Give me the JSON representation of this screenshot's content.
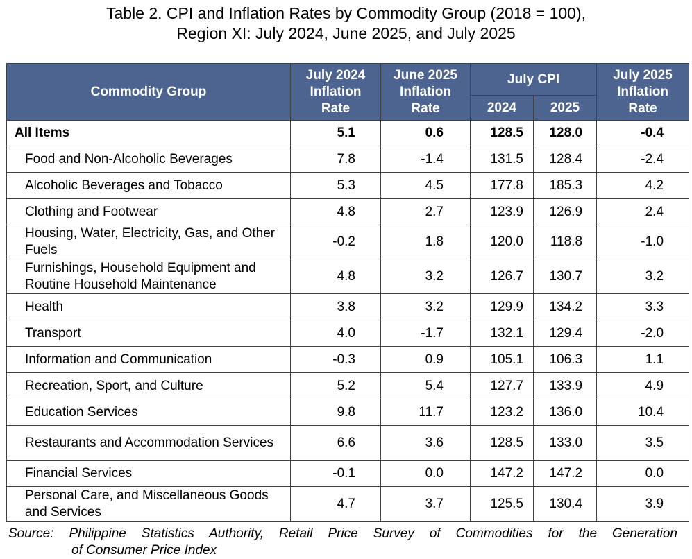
{
  "title": {
    "line1": "Table 2. CPI and Inflation Rates by Commodity Group (2018 = 100),",
    "line2": "Region XI: July 2024, June 2025, and July 2025"
  },
  "table": {
    "headers": {
      "commodity": "Commodity Group",
      "july2024_rate": [
        "July 2024",
        "Inflation",
        "Rate"
      ],
      "june2025_rate": [
        "June 2025",
        "Inflation",
        "Rate"
      ],
      "july_cpi": "July CPI",
      "cpi_2024": "2024",
      "cpi_2025": "2025",
      "july2025_rate": [
        "July 2025",
        "Inflation",
        "Rate"
      ]
    },
    "rows": [
      {
        "group": "All Items",
        "r2024": "5.1",
        "r_jun2025": "0.6",
        "cpi2024": "128.5",
        "cpi2025": "128.0",
        "r2025": "-0.4"
      },
      {
        "group": "Food and Non-Alcoholic Beverages",
        "r2024": "7.8",
        "r_jun2025": "-1.4",
        "cpi2024": "131.5",
        "cpi2025": "128.4",
        "r2025": "-2.4"
      },
      {
        "group": "Alcoholic Beverages and Tobacco",
        "r2024": "5.3",
        "r_jun2025": "4.5",
        "cpi2024": "177.8",
        "cpi2025": "185.3",
        "r2025": "4.2"
      },
      {
        "group": "Clothing and Footwear",
        "r2024": "4.8",
        "r_jun2025": "2.7",
        "cpi2024": "123.9",
        "cpi2025": "126.9",
        "r2025": "2.4"
      },
      {
        "group": "Housing, Water, Electricity, Gas, and Other Fuels",
        "r2024": "-0.2",
        "r_jun2025": "1.8",
        "cpi2024": "120.0",
        "cpi2025": "118.8",
        "r2025": "-1.0"
      },
      {
        "group": "Furnishings, Household Equipment and Routine Household Maintenance",
        "r2024": "4.8",
        "r_jun2025": "3.2",
        "cpi2024": "126.7",
        "cpi2025": "130.7",
        "r2025": "3.2"
      },
      {
        "group": "Health",
        "r2024": "3.8",
        "r_jun2025": "3.2",
        "cpi2024": "129.9",
        "cpi2025": "134.2",
        "r2025": "3.3"
      },
      {
        "group": "Transport",
        "r2024": "4.0",
        "r_jun2025": "-1.7",
        "cpi2024": "132.1",
        "cpi2025": "129.4",
        "r2025": "-2.0"
      },
      {
        "group": "Information and Communication",
        "r2024": "-0.3",
        "r_jun2025": "0.9",
        "cpi2024": "105.1",
        "cpi2025": "106.3",
        "r2025": "1.1"
      },
      {
        "group": "Recreation, Sport, and Culture",
        "r2024": "5.2",
        "r_jun2025": "5.4",
        "cpi2024": "127.7",
        "cpi2025": "133.9",
        "r2025": "4.9"
      },
      {
        "group": "Education Services",
        "r2024": "9.8",
        "r_jun2025": "11.7",
        "cpi2024": "123.2",
        "cpi2025": "136.0",
        "r2025": "10.4"
      },
      {
        "group": "Restaurants and Accommodation Services",
        "r2024": "6.6",
        "r_jun2025": "3.6",
        "cpi2024": "128.5",
        "cpi2025": "133.0",
        "r2025": "3.5"
      },
      {
        "group": "Financial Services",
        "r2024": "-0.1",
        "r_jun2025": "0.0",
        "cpi2024": "147.2",
        "cpi2025": "147.2",
        "r2025": "0.0"
      },
      {
        "group": "Personal Care, and Miscellaneous Goods and Services",
        "r2024": "4.7",
        "r_jun2025": "3.7",
        "cpi2024": "125.5",
        "cpi2025": "130.4",
        "r2025": "3.9"
      }
    ]
  },
  "source": {
    "line1": "Source: Philippine Statistics Authority, Retail Price Survey of Commodities for the Generation",
    "line2": "of Consumer Price Index"
  },
  "colors": {
    "header_bg": "#4e6490",
    "header_text": "#ffffff",
    "border": "#404040"
  }
}
